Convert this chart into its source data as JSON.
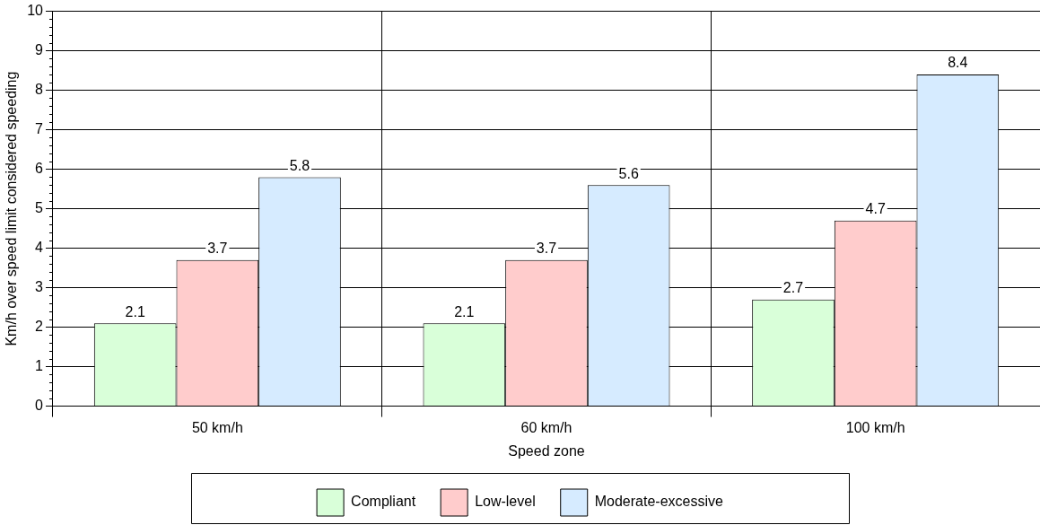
{
  "chart_data": {
    "type": "bar",
    "xlabel": "Speed zone",
    "ylabel": "Km/h over speed limit considered speeding",
    "categories": [
      "50 km/h",
      "60 km/h",
      "100 km/h"
    ],
    "series": [
      {
        "name": "Compliant",
        "color": "#d9ffd9",
        "values": [
          2.1,
          2.1,
          2.7
        ]
      },
      {
        "name": "Low-level",
        "color": "#ffcccc",
        "values": [
          3.7,
          3.7,
          4.7
        ]
      },
      {
        "name": "Moderate-excessive",
        "color": "#d6ebff",
        "values": [
          5.8,
          5.6,
          8.4
        ]
      }
    ],
    "ylim": [
      0,
      10
    ],
    "yticks": [
      0,
      1,
      2,
      3,
      4,
      5,
      6,
      7,
      8,
      9,
      10
    ],
    "grid": true,
    "legend": "bottom",
    "data_labels": true
  }
}
